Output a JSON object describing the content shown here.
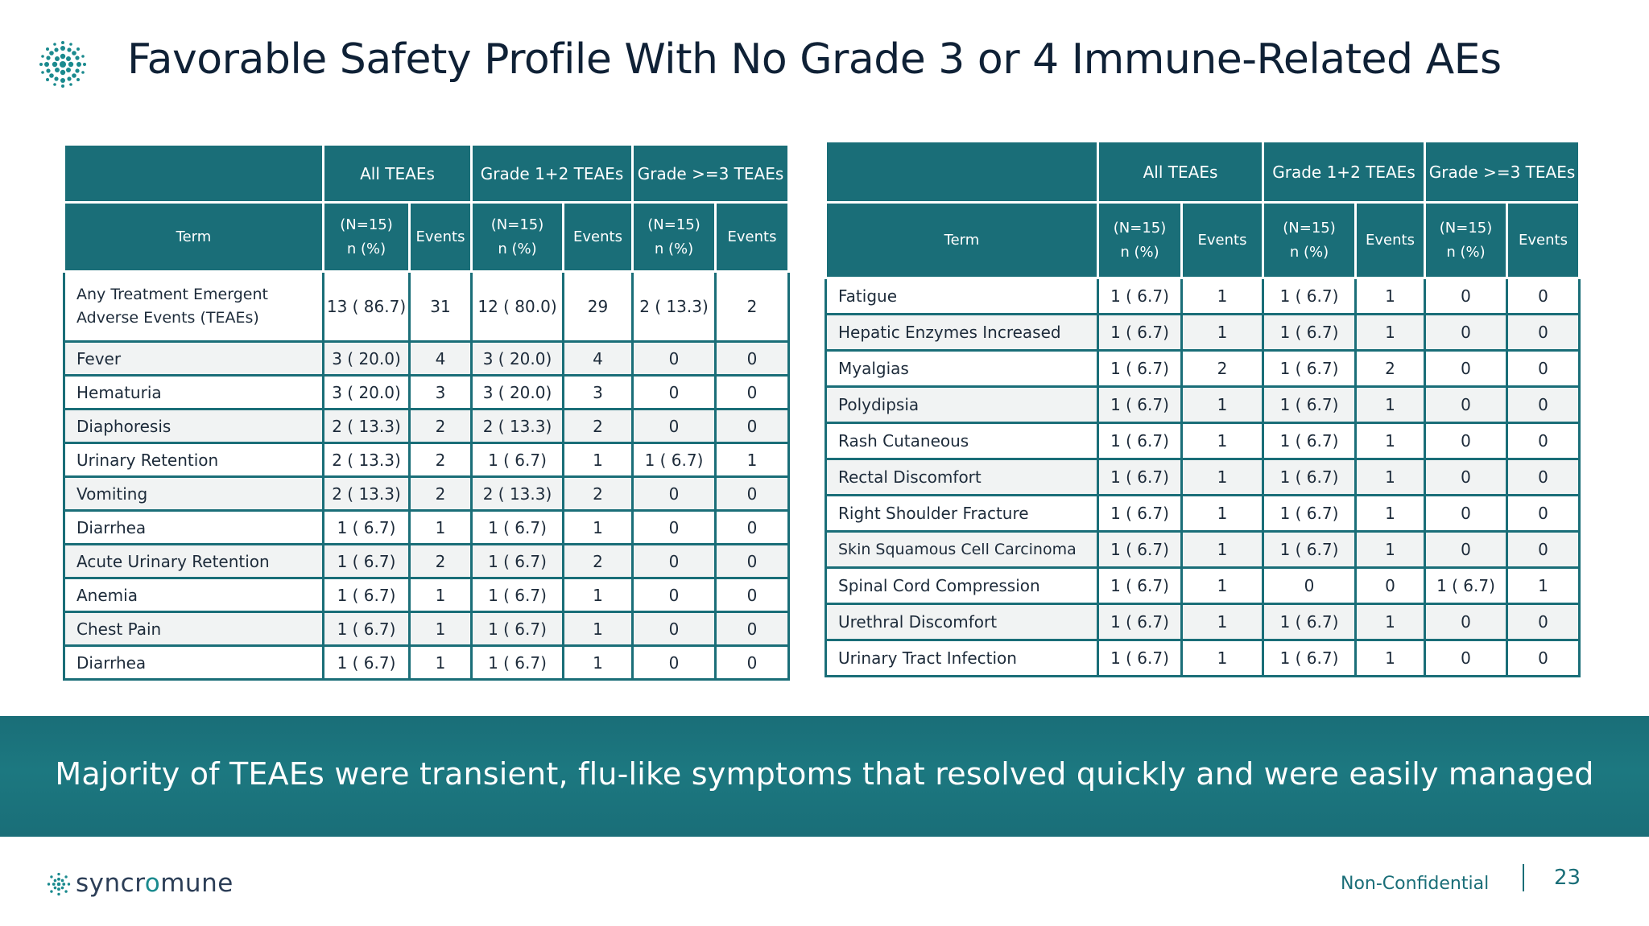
{
  "title": "Favorable Safety Profile With No Grade 3 or 4 Immune-Related AEs",
  "headers": {
    "group1": "All TEAEs",
    "group2": "Grade 1+2 TEAEs",
    "group3": "Grade >=3 TEAEs",
    "term": "Term",
    "n_line1": "(N=15)",
    "n_line2": "n (%)",
    "events": "Events"
  },
  "left_rows": [
    {
      "term": "Any Treatment Emergent Adverse Events (TEAEs)",
      "all_n": "13 ( 86.7)",
      "all_e": "31",
      "g12_n": "12 ( 80.0)",
      "g12_e": "29",
      "g3_n": "2 ( 13.3)",
      "g3_e": "2"
    },
    {
      "term": "Fever",
      "all_n": "3 ( 20.0)",
      "all_e": "4",
      "g12_n": "3 ( 20.0)",
      "g12_e": "4",
      "g3_n": "0",
      "g3_e": "0"
    },
    {
      "term": "Hematuria",
      "all_n": "3 ( 20.0)",
      "all_e": "3",
      "g12_n": "3 ( 20.0)",
      "g12_e": "3",
      "g3_n": "0",
      "g3_e": "0"
    },
    {
      "term": "Diaphoresis",
      "all_n": "2 ( 13.3)",
      "all_e": "2",
      "g12_n": "2 ( 13.3)",
      "g12_e": "2",
      "g3_n": "0",
      "g3_e": "0"
    },
    {
      "term": "Urinary Retention",
      "all_n": "2 ( 13.3)",
      "all_e": "2",
      "g12_n": "1 (  6.7)",
      "g12_e": "1",
      "g3_n": "1 ( 6.7)",
      "g3_e": "1"
    },
    {
      "term": "Vomiting",
      "all_n": "2 ( 13.3)",
      "all_e": "2",
      "g12_n": "2 ( 13.3)",
      "g12_e": "2",
      "g3_n": "0",
      "g3_e": "0"
    },
    {
      "term": "Diarrhea",
      "all_n": "1 (  6.7)",
      "all_e": "1",
      "g12_n": "1 (  6.7)",
      "g12_e": "1",
      "g3_n": "0",
      "g3_e": "0"
    },
    {
      "term": "Acute Urinary Retention",
      "all_n": "1 (  6.7)",
      "all_e": "2",
      "g12_n": "1 (  6.7)",
      "g12_e": "2",
      "g3_n": "0",
      "g3_e": "0"
    },
    {
      "term": "Anemia",
      "all_n": "1 (  6.7)",
      "all_e": "1",
      "g12_n": "1 (  6.7)",
      "g12_e": "1",
      "g3_n": "0",
      "g3_e": "0"
    },
    {
      "term": "Chest Pain",
      "all_n": "1 (  6.7)",
      "all_e": "1",
      "g12_n": "1 (  6.7)",
      "g12_e": "1",
      "g3_n": "0",
      "g3_e": "0"
    },
    {
      "term": "Diarrhea",
      "all_n": "1 (  6.7)",
      "all_e": "1",
      "g12_n": "1 (  6.7)",
      "g12_e": "1",
      "g3_n": "0",
      "g3_e": "0"
    }
  ],
  "right_rows": [
    {
      "term": "Fatigue",
      "all_n": "1 (  6.7)",
      "all_e": "1",
      "g12_n": "1 (  6.7)",
      "g12_e": "1",
      "g3_n": "0",
      "g3_e": "0"
    },
    {
      "term": "Hepatic Enzymes Increased",
      "all_n": "1 (  6.7)",
      "all_e": "1",
      "g12_n": "1 (  6.7)",
      "g12_e": "1",
      "g3_n": "0",
      "g3_e": "0"
    },
    {
      "term": "Myalgias",
      "all_n": "1 (  6.7)",
      "all_e": "2",
      "g12_n": "1 (  6.7)",
      "g12_e": "2",
      "g3_n": "0",
      "g3_e": "0"
    },
    {
      "term": "Polydipsia",
      "all_n": "1 (  6.7)",
      "all_e": "1",
      "g12_n": "1 (  6.7)",
      "g12_e": "1",
      "g3_n": "0",
      "g3_e": "0"
    },
    {
      "term": "Rash Cutaneous",
      "all_n": "1 (  6.7)",
      "all_e": "1",
      "g12_n": "1 (  6.7)",
      "g12_e": "1",
      "g3_n": "0",
      "g3_e": "0"
    },
    {
      "term": "Rectal Discomfort",
      "all_n": "1 (  6.7)",
      "all_e": "1",
      "g12_n": "1 (  6.7)",
      "g12_e": "1",
      "g3_n": "0",
      "g3_e": "0"
    },
    {
      "term": "Right Shoulder Fracture",
      "all_n": "1 (  6.7)",
      "all_e": "1",
      "g12_n": "1 (  6.7)",
      "g12_e": "1",
      "g3_n": "0",
      "g3_e": "0"
    },
    {
      "term": "Skin Squamous Cell Carcinoma",
      "all_n": "1 (  6.7)",
      "all_e": "1",
      "g12_n": "1 (  6.7)",
      "g12_e": "1",
      "g3_n": "0",
      "g3_e": "0"
    },
    {
      "term": "Spinal Cord Compression",
      "all_n": "1 (  6.7)",
      "all_e": "1",
      "g12_n": "0",
      "g12_e": "0",
      "g3_n": "1 ( 6.7)",
      "g3_e": "1"
    },
    {
      "term": "Urethral Discomfort",
      "all_n": "1 (  6.7)",
      "all_e": "1",
      "g12_n": "1 (  6.7)",
      "g12_e": "1",
      "g3_n": "0",
      "g3_e": "0"
    },
    {
      "term": "Urinary Tract Infection",
      "all_n": "1 (  6.7)",
      "all_e": "1",
      "g12_n": "1 (  6.7)",
      "g12_e": "1",
      "g3_n": "0",
      "g3_e": "0"
    }
  ],
  "banner": "Majority of TEAEs were transient, flu-like symptoms that resolved quickly and were easily managed",
  "footer": {
    "brand_pre": "syncr",
    "brand_o": "o",
    "brand_post": "mune",
    "confidentiality": "Non-Confidential",
    "page_number": "23"
  },
  "colors": {
    "primary_teal": "#1a6e78",
    "title_navy": "#0f2136",
    "row_stripe": "#f1f3f3"
  },
  "icons": [
    "synchromune-logo-icon"
  ]
}
